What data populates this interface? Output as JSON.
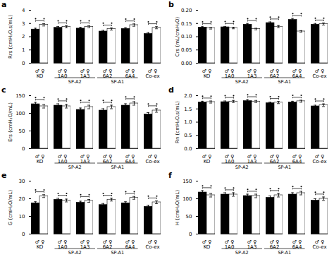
{
  "chart_data": [
    {
      "type": "bar",
      "title": "a",
      "ylabel": "Rrs (cmH₂O.s/mL)",
      "categories": [
        "♂ ♀\nKO",
        "♂ ♀\n1A0",
        "♂ ♀\n1A3",
        "♂ ♀\n6A2",
        "♂ ♀\n6A4",
        "♂ ♀\nCo-ex"
      ],
      "series": [
        {
          "color": "#000000",
          "values": [
            2.55,
            2.68,
            2.62,
            2.4,
            2.6,
            2.22
          ],
          "errors": [
            0.09,
            0.09,
            0.09,
            0.08,
            0.08,
            0.09
          ]
        },
        {
          "color": "#ffffff",
          "values": [
            2.9,
            2.75,
            2.75,
            2.58,
            2.88,
            2.68
          ],
          "errors": [
            0.09,
            0.08,
            0.08,
            0.08,
            0.09,
            0.08
          ]
        }
      ],
      "ylim": [
        0,
        4
      ],
      "yticks": [
        0,
        1,
        2,
        3,
        4
      ],
      "annotations": [
        {
          "text": "SP-A2",
          "from": "♂ ♀\n1A0",
          "to": "♂ ♀\n1A3"
        },
        {
          "text": "SP-A1",
          "from": "♂ ♀\n6A2",
          "to": "♂ ♀\n6A4"
        }
      ],
      "grid": false
    },
    {
      "type": "bar",
      "title": "b",
      "ylabel": "Crs (mL/cmH₂O)",
      "categories": [
        "♂ ♀\nKO",
        "♂ ♀\n1A0",
        "♂ ♀\n1A3",
        "♂ ♀\n6A2",
        "♂ ♀\n6A4",
        "♂ ♀\nCo-ex"
      ],
      "series": [
        {
          "color": "#000000",
          "values": [
            0.135,
            0.136,
            0.146,
            0.152,
            0.164,
            0.146
          ],
          "errors": [
            0.003,
            0.003,
            0.004,
            0.004,
            0.005,
            0.004
          ]
        },
        {
          "color": "#ffffff",
          "values": [
            0.132,
            0.133,
            0.129,
            0.138,
            0.12,
            0.148
          ],
          "errors": [
            0.003,
            0.003,
            0.003,
            0.004,
            0.003,
            0.004
          ]
        }
      ],
      "ylim": [
        0.0,
        0.2
      ],
      "yticks": [
        {
          "value": 0,
          "label": "0.00"
        },
        0.05,
        {
          "value": 0.1,
          "label": "0.10"
        },
        0.15,
        {
          "value": 0.2,
          "label": "0.20"
        }
      ],
      "annotations": [
        {
          "text": "SP-A2",
          "from": "♂ ♀\n1A0",
          "to": "♂ ♀\n1A3"
        },
        {
          "text": "SP-A1",
          "from": "♂ ♀\n6A2",
          "to": "♂ ♀\n6A4"
        }
      ],
      "grid": false
    },
    {
      "type": "bar",
      "title": "c",
      "ylabel": "Ers (cmH₂O/mL)",
      "categories": [
        "♂ ♀\nKO",
        "♂ ♀\n1A0",
        "♂ ♀\n1A3",
        "♂ ♀\n6A2",
        "♂ ♀\n6A4",
        "♂ ♀\nCo-ex"
      ],
      "series": [
        {
          "color": "#000000",
          "values": [
            126,
            122,
            110,
            108,
            122,
            97
          ],
          "errors": [
            5,
            5,
            5,
            5,
            5,
            5
          ]
        },
        {
          "color": "#ffffff",
          "values": [
            120,
            120,
            118,
            118,
            128,
            108
          ],
          "errors": [
            5,
            5,
            5,
            5,
            5,
            5
          ]
        }
      ],
      "ylim": [
        0,
        150
      ],
      "yticks": [
        0,
        50,
        100,
        150
      ],
      "annotations": [
        {
          "text": "SP-A2",
          "from": "♂ ♀\n1A0",
          "to": "♂ ♀\n1A3"
        },
        {
          "text": "SP-A1",
          "from": "♂ ♀\n6A2",
          "to": "♂ ♀\n6A4"
        }
      ],
      "grid": false
    },
    {
      "type": "bar",
      "title": "d",
      "ylabel": "Rn (cmH₂O.s/mL)",
      "categories": [
        "♂ ♀\nKO",
        "♂ ♀\n1A0",
        "♂ ♀\n1A3",
        "♂ ♀\n6A2",
        "♂ ♀\n6A4",
        "♂ ♀\nCo-ex"
      ],
      "series": [
        {
          "color": "#000000",
          "values": [
            1.75,
            1.76,
            1.8,
            1.72,
            1.75,
            1.6
          ],
          "errors": [
            0.04,
            0.04,
            0.05,
            0.04,
            0.04,
            0.04
          ]
        },
        {
          "color": "#ffffff",
          "values": [
            1.76,
            1.78,
            1.78,
            1.74,
            1.79,
            1.64
          ],
          "errors": [
            0.04,
            0.04,
            0.04,
            0.04,
            0.04,
            0.05
          ]
        }
      ],
      "ylim": [
        0.0,
        2.0
      ],
      "yticks": [
        {
          "value": 0,
          "label": "0.0"
        },
        0.5,
        {
          "value": 1,
          "label": "1.0"
        },
        1.5,
        {
          "value": 2,
          "label": "2.0"
        }
      ],
      "annotations": [
        {
          "text": "SP-A2",
          "from": "♂ ♀\n1A0",
          "to": "♂ ♀\n1A3"
        },
        {
          "text": "SP-A1",
          "from": "♂ ♀\n6A2",
          "to": "♂ ♀\n6A4"
        }
      ],
      "grid": false
    },
    {
      "type": "bar",
      "title": "e",
      "ylabel": "G (cmH₂O/mL)",
      "categories": [
        "♂ ♀\nKO",
        "♂ ♀\n1A0",
        "♂ ♀\n1A3",
        "♂ ♀\n6A2",
        "♂ ♀\n6A4",
        "♂ ♀\nCo-ex"
      ],
      "series": [
        {
          "color": "#000000",
          "values": [
            17.5,
            19.5,
            17.8,
            16.5,
            17.5,
            15.5
          ],
          "errors": [
            0.8,
            0.8,
            0.8,
            0.8,
            0.8,
            0.8
          ]
        },
        {
          "color": "#ffffff",
          "values": [
            21.5,
            19.0,
            18.8,
            19.5,
            20.5,
            18.0
          ],
          "errors": [
            0.8,
            0.8,
            0.8,
            0.8,
            0.8,
            0.8
          ]
        }
      ],
      "ylim": [
        0,
        30
      ],
      "yticks": [
        0,
        10,
        20,
        30
      ],
      "annotations": [
        {
          "text": "SP-A2",
          "from": "♂ ♀\n1A0",
          "to": "♂ ♀\n1A3"
        },
        {
          "text": "SP-A1",
          "from": "♂ ♀\n6A2",
          "to": "♂ ♀\n6A4"
        }
      ],
      "grid": false
    },
    {
      "type": "bar",
      "title": "f",
      "ylabel": "H (cmH₂O/mL)",
      "categories": [
        "♂ ♀\nKO",
        "♂ ♀\n1A0",
        "♂ ♀\n1A3",
        "♂ ♀\n6A2",
        "♂ ♀\n6A4",
        "♂ ♀\nCo-ex"
      ],
      "series": [
        {
          "color": "#000000",
          "values": [
            118,
            112,
            108,
            103,
            112,
            95
          ],
          "errors": [
            5,
            5,
            5,
            5,
            5,
            5
          ]
        },
        {
          "color": "#ffffff",
          "values": [
            110,
            112,
            108,
            110,
            116,
            100
          ],
          "errors": [
            5,
            5,
            5,
            5,
            5,
            5
          ]
        }
      ],
      "ylim": [
        0,
        150
      ],
      "yticks": [
        0,
        50,
        100,
        150
      ],
      "annotations": [
        {
          "text": "SP-A2",
          "from": "♂ ♀\n1A0",
          "to": "♂ ♀\n1A3"
        },
        {
          "text": "SP-A1",
          "from": "♂ ♀\n6A2",
          "to": "♂ ♀\n6A4"
        }
      ],
      "grid": false
    }
  ]
}
